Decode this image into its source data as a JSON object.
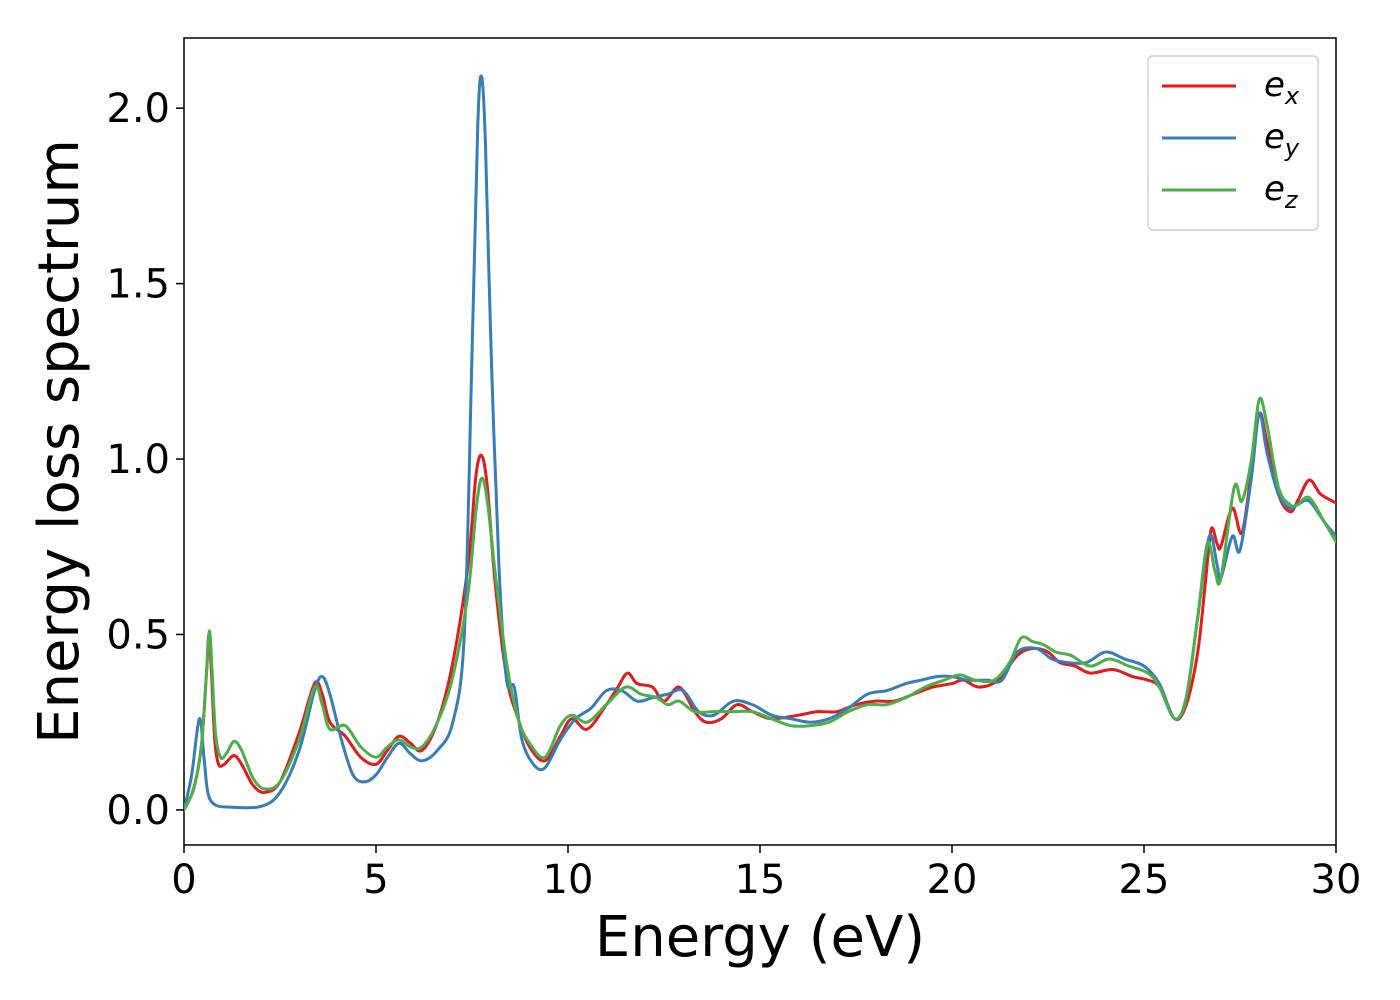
{
  "chart_data": {
    "type": "line",
    "xlabel": "Energy (eV)",
    "ylabel": "Energy loss spectrum",
    "xlim": [
      0,
      30
    ],
    "ylim": [
      -0.1,
      2.2
    ],
    "xticks": [
      0,
      5,
      10,
      15,
      20,
      25,
      30
    ],
    "xtick_labels": [
      "0",
      "5",
      "10",
      "15",
      "20",
      "25",
      "30"
    ],
    "yticks": [
      0.0,
      0.5,
      1.0,
      1.5,
      2.0
    ],
    "ytick_labels": [
      "0.0",
      "0.5",
      "1.0",
      "1.5",
      "2.0"
    ],
    "grid": false,
    "legend_position": "top-right",
    "series": [
      {
        "name": "e_x",
        "label_base": "e",
        "label_sub": "x",
        "color": "#e41a1c",
        "points": [
          [
            0,
            0.0
          ],
          [
            0.25,
            0.06
          ],
          [
            0.45,
            0.18
          ],
          [
            0.58,
            0.38
          ],
          [
            0.65,
            0.5
          ],
          [
            0.72,
            0.38
          ],
          [
            0.8,
            0.2
          ],
          [
            0.9,
            0.13
          ],
          [
            1.05,
            0.13
          ],
          [
            1.3,
            0.155
          ],
          [
            1.5,
            0.13
          ],
          [
            1.8,
            0.07
          ],
          [
            2.1,
            0.05
          ],
          [
            2.5,
            0.08
          ],
          [
            3.0,
            0.22
          ],
          [
            3.4,
            0.36
          ],
          [
            3.6,
            0.33
          ],
          [
            3.8,
            0.25
          ],
          [
            4.2,
            0.21
          ],
          [
            4.6,
            0.15
          ],
          [
            5.0,
            0.13
          ],
          [
            5.3,
            0.17
          ],
          [
            5.6,
            0.21
          ],
          [
            5.9,
            0.19
          ],
          [
            6.2,
            0.17
          ],
          [
            6.6,
            0.25
          ],
          [
            7.0,
            0.42
          ],
          [
            7.4,
            0.7
          ],
          [
            7.6,
            0.95
          ],
          [
            7.75,
            1.01
          ],
          [
            7.9,
            0.92
          ],
          [
            8.1,
            0.65
          ],
          [
            8.4,
            0.38
          ],
          [
            8.7,
            0.26
          ],
          [
            9.0,
            0.18
          ],
          [
            9.4,
            0.14
          ],
          [
            9.8,
            0.21
          ],
          [
            10.1,
            0.26
          ],
          [
            10.5,
            0.23
          ],
          [
            11.0,
            0.3
          ],
          [
            11.3,
            0.35
          ],
          [
            11.55,
            0.39
          ],
          [
            11.8,
            0.36
          ],
          [
            12.2,
            0.35
          ],
          [
            12.5,
            0.31
          ],
          [
            12.9,
            0.35
          ],
          [
            13.3,
            0.28
          ],
          [
            13.6,
            0.25
          ],
          [
            14.0,
            0.26
          ],
          [
            14.4,
            0.3
          ],
          [
            14.8,
            0.28
          ],
          [
            15.3,
            0.26
          ],
          [
            16.0,
            0.27
          ],
          [
            16.5,
            0.28
          ],
          [
            17.0,
            0.28
          ],
          [
            17.5,
            0.3
          ],
          [
            18.0,
            0.31
          ],
          [
            18.5,
            0.31
          ],
          [
            19.0,
            0.33
          ],
          [
            19.5,
            0.35
          ],
          [
            20.0,
            0.36
          ],
          [
            20.3,
            0.37
          ],
          [
            20.7,
            0.35
          ],
          [
            21.2,
            0.37
          ],
          [
            21.7,
            0.44
          ],
          [
            22.1,
            0.46
          ],
          [
            22.5,
            0.45
          ],
          [
            22.8,
            0.42
          ],
          [
            23.2,
            0.41
          ],
          [
            23.6,
            0.39
          ],
          [
            24.2,
            0.4
          ],
          [
            24.7,
            0.38
          ],
          [
            25.1,
            0.37
          ],
          [
            25.4,
            0.35
          ],
          [
            25.8,
            0.26
          ],
          [
            26.1,
            0.3
          ],
          [
            26.4,
            0.45
          ],
          [
            26.6,
            0.65
          ],
          [
            26.75,
            0.8
          ],
          [
            26.9,
            0.76
          ],
          [
            27.0,
            0.75
          ],
          [
            27.3,
            0.86
          ],
          [
            27.55,
            0.79
          ],
          [
            27.8,
            0.97
          ],
          [
            28.0,
            1.13
          ],
          [
            28.2,
            1.05
          ],
          [
            28.5,
            0.9
          ],
          [
            28.8,
            0.85
          ],
          [
            29.0,
            0.88
          ],
          [
            29.3,
            0.94
          ],
          [
            29.6,
            0.9
          ],
          [
            30.0,
            0.875
          ]
        ]
      },
      {
        "name": "e_y",
        "label_base": "e",
        "label_sub": "y",
        "color": "#377eb8",
        "points": [
          [
            0,
            0.0
          ],
          [
            0.2,
            0.1
          ],
          [
            0.4,
            0.26
          ],
          [
            0.52,
            0.15
          ],
          [
            0.62,
            0.05
          ],
          [
            0.8,
            0.015
          ],
          [
            1.2,
            0.008
          ],
          [
            2.0,
            0.01
          ],
          [
            2.5,
            0.05
          ],
          [
            3.0,
            0.17
          ],
          [
            3.4,
            0.34
          ],
          [
            3.6,
            0.38
          ],
          [
            3.8,
            0.33
          ],
          [
            4.1,
            0.2
          ],
          [
            4.4,
            0.1
          ],
          [
            4.7,
            0.08
          ],
          [
            5.0,
            0.1
          ],
          [
            5.3,
            0.15
          ],
          [
            5.6,
            0.19
          ],
          [
            5.9,
            0.16
          ],
          [
            6.2,
            0.14
          ],
          [
            6.6,
            0.17
          ],
          [
            7.0,
            0.25
          ],
          [
            7.3,
            0.5
          ],
          [
            7.5,
            1.3
          ],
          [
            7.65,
            1.95
          ],
          [
            7.75,
            2.09
          ],
          [
            7.85,
            1.9
          ],
          [
            8.0,
            1.3
          ],
          [
            8.2,
            0.7
          ],
          [
            8.4,
            0.37
          ],
          [
            8.6,
            0.35
          ],
          [
            8.8,
            0.2
          ],
          [
            9.1,
            0.13
          ],
          [
            9.4,
            0.12
          ],
          [
            9.8,
            0.2
          ],
          [
            10.2,
            0.26
          ],
          [
            10.6,
            0.29
          ],
          [
            11.0,
            0.34
          ],
          [
            11.4,
            0.34
          ],
          [
            11.8,
            0.31
          ],
          [
            12.2,
            0.32
          ],
          [
            12.6,
            0.33
          ],
          [
            13.0,
            0.34
          ],
          [
            13.4,
            0.28
          ],
          [
            13.8,
            0.27
          ],
          [
            14.3,
            0.31
          ],
          [
            14.8,
            0.3
          ],
          [
            15.3,
            0.27
          ],
          [
            15.8,
            0.26
          ],
          [
            16.3,
            0.25
          ],
          [
            16.8,
            0.26
          ],
          [
            17.3,
            0.29
          ],
          [
            17.8,
            0.33
          ],
          [
            18.3,
            0.34
          ],
          [
            18.8,
            0.36
          ],
          [
            19.2,
            0.37
          ],
          [
            19.6,
            0.38
          ],
          [
            20.0,
            0.38
          ],
          [
            20.4,
            0.37
          ],
          [
            20.9,
            0.37
          ],
          [
            21.3,
            0.37
          ],
          [
            21.7,
            0.45
          ],
          [
            22.2,
            0.46
          ],
          [
            22.6,
            0.43
          ],
          [
            23.0,
            0.42
          ],
          [
            23.5,
            0.42
          ],
          [
            24.0,
            0.45
          ],
          [
            24.5,
            0.43
          ],
          [
            25.0,
            0.41
          ],
          [
            25.4,
            0.36
          ],
          [
            25.8,
            0.26
          ],
          [
            26.1,
            0.32
          ],
          [
            26.4,
            0.55
          ],
          [
            26.7,
            0.78
          ],
          [
            26.9,
            0.7
          ],
          [
            27.0,
            0.66
          ],
          [
            27.3,
            0.78
          ],
          [
            27.5,
            0.74
          ],
          [
            27.8,
            0.95
          ],
          [
            28.0,
            1.13
          ],
          [
            28.2,
            1.02
          ],
          [
            28.5,
            0.9
          ],
          [
            28.8,
            0.86
          ],
          [
            29.0,
            0.87
          ],
          [
            29.3,
            0.88
          ],
          [
            29.7,
            0.82
          ],
          [
            30.0,
            0.78
          ]
        ]
      },
      {
        "name": "e_z",
        "label_base": "e",
        "label_sub": "z",
        "color": "#4daf4a",
        "points": [
          [
            0,
            0.0
          ],
          [
            0.25,
            0.06
          ],
          [
            0.45,
            0.18
          ],
          [
            0.58,
            0.38
          ],
          [
            0.66,
            0.51
          ],
          [
            0.73,
            0.4
          ],
          [
            0.82,
            0.22
          ],
          [
            0.95,
            0.15
          ],
          [
            1.1,
            0.16
          ],
          [
            1.3,
            0.195
          ],
          [
            1.5,
            0.17
          ],
          [
            1.8,
            0.09
          ],
          [
            2.1,
            0.06
          ],
          [
            2.5,
            0.08
          ],
          [
            3.0,
            0.2
          ],
          [
            3.4,
            0.35
          ],
          [
            3.6,
            0.3
          ],
          [
            3.8,
            0.23
          ],
          [
            4.2,
            0.24
          ],
          [
            4.6,
            0.18
          ],
          [
            5.0,
            0.15
          ],
          [
            5.3,
            0.18
          ],
          [
            5.6,
            0.2
          ],
          [
            5.9,
            0.18
          ],
          [
            6.2,
            0.18
          ],
          [
            6.6,
            0.25
          ],
          [
            7.0,
            0.38
          ],
          [
            7.4,
            0.62
          ],
          [
            7.6,
            0.85
          ],
          [
            7.75,
            0.945
          ],
          [
            7.9,
            0.88
          ],
          [
            8.1,
            0.68
          ],
          [
            8.4,
            0.42
          ],
          [
            8.7,
            0.26
          ],
          [
            9.0,
            0.19
          ],
          [
            9.4,
            0.15
          ],
          [
            9.8,
            0.24
          ],
          [
            10.1,
            0.27
          ],
          [
            10.5,
            0.25
          ],
          [
            11.0,
            0.3
          ],
          [
            11.5,
            0.35
          ],
          [
            11.9,
            0.33
          ],
          [
            12.3,
            0.32
          ],
          [
            12.6,
            0.3
          ],
          [
            12.9,
            0.31
          ],
          [
            13.3,
            0.28
          ],
          [
            13.8,
            0.28
          ],
          [
            14.3,
            0.28
          ],
          [
            14.8,
            0.28
          ],
          [
            15.3,
            0.26
          ],
          [
            15.8,
            0.24
          ],
          [
            16.3,
            0.24
          ],
          [
            16.8,
            0.25
          ],
          [
            17.3,
            0.28
          ],
          [
            17.8,
            0.3
          ],
          [
            18.3,
            0.3
          ],
          [
            18.8,
            0.32
          ],
          [
            19.3,
            0.35
          ],
          [
            19.8,
            0.37
          ],
          [
            20.2,
            0.385
          ],
          [
            20.6,
            0.37
          ],
          [
            21.1,
            0.37
          ],
          [
            21.5,
            0.42
          ],
          [
            21.8,
            0.49
          ],
          [
            22.1,
            0.48
          ],
          [
            22.4,
            0.47
          ],
          [
            22.7,
            0.45
          ],
          [
            23.1,
            0.44
          ],
          [
            23.6,
            0.41
          ],
          [
            24.1,
            0.43
          ],
          [
            24.6,
            0.41
          ],
          [
            25.1,
            0.39
          ],
          [
            25.4,
            0.35
          ],
          [
            25.8,
            0.26
          ],
          [
            26.1,
            0.32
          ],
          [
            26.4,
            0.55
          ],
          [
            26.65,
            0.76
          ],
          [
            26.85,
            0.68
          ],
          [
            27.0,
            0.66
          ],
          [
            27.35,
            0.92
          ],
          [
            27.55,
            0.88
          ],
          [
            27.8,
            1.0
          ],
          [
            28.0,
            1.17
          ],
          [
            28.2,
            1.1
          ],
          [
            28.5,
            0.92
          ],
          [
            28.8,
            0.87
          ],
          [
            29.0,
            0.87
          ],
          [
            29.3,
            0.89
          ],
          [
            29.7,
            0.82
          ],
          [
            30.0,
            0.765
          ]
        ]
      }
    ]
  }
}
